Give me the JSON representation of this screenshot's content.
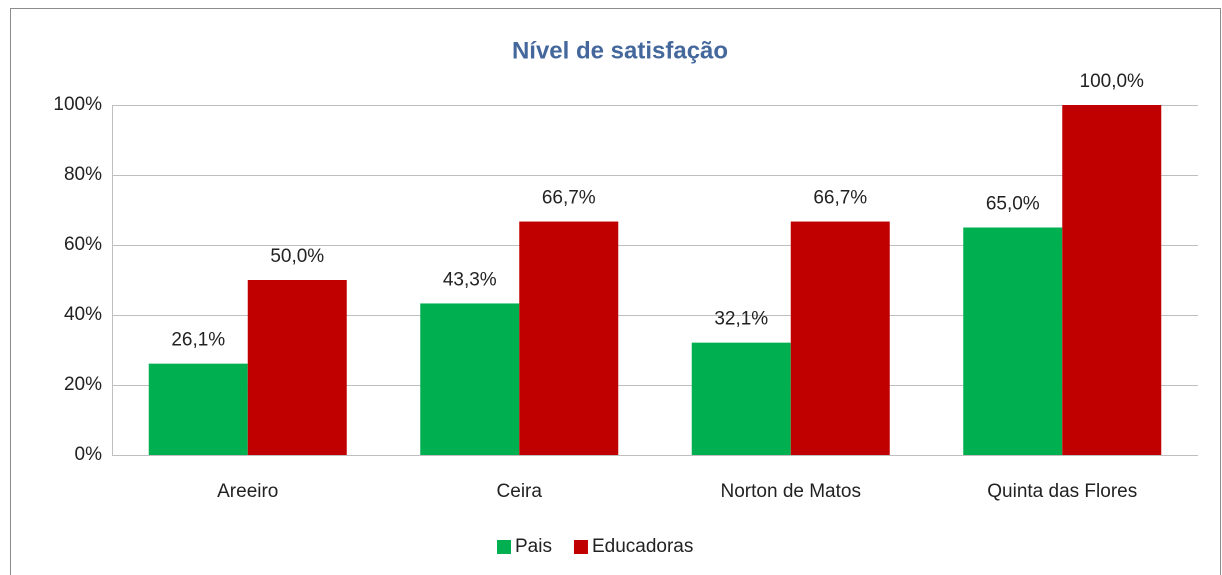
{
  "chart_data": {
    "type": "bar",
    "title": "Nível de satisfação",
    "categories": [
      "Areeiro",
      "Ceira",
      "Norton de Matos",
      "Quinta das Flores"
    ],
    "series": [
      {
        "name": "Pais",
        "color": "#00b050",
        "values": [
          26.1,
          43.3,
          32.1,
          65.0
        ],
        "value_labels": [
          "26,1%",
          "43,3%",
          "32,1%",
          "65,0%"
        ]
      },
      {
        "name": "Educadoras",
        "color": "#c00000",
        "values": [
          50.0,
          66.7,
          66.7,
          100.0
        ],
        "value_labels": [
          "50,0%",
          "66,7%",
          "66,7%",
          "100,0%"
        ]
      }
    ],
    "ylim": [
      0,
      100
    ],
    "yticks": [
      {
        "value": 0,
        "label": "0%"
      },
      {
        "value": 20,
        "label": "20%"
      },
      {
        "value": 40,
        "label": "40%"
      },
      {
        "value": 60,
        "label": "60%"
      },
      {
        "value": 80,
        "label": "80%"
      },
      {
        "value": 100,
        "label": "100%"
      }
    ],
    "grid": true,
    "legend": "bottom"
  }
}
